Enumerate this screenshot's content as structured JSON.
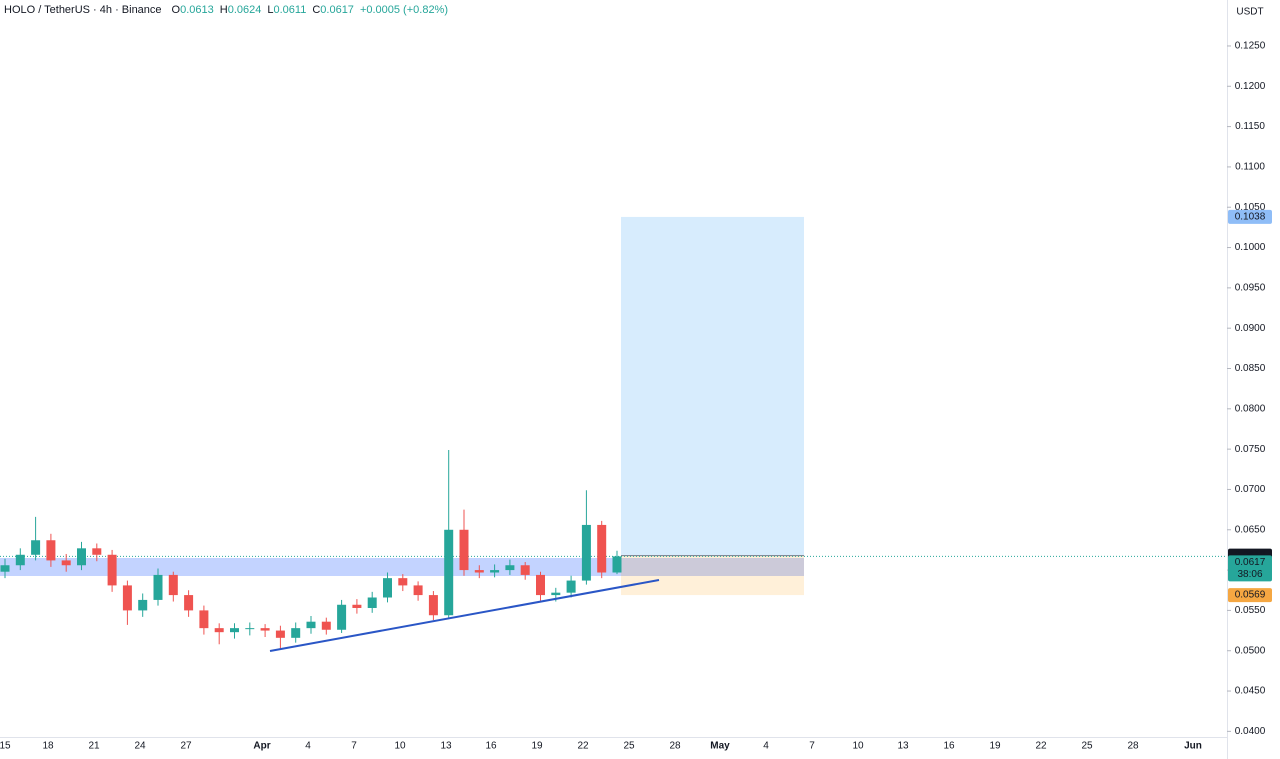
{
  "chart_data": {
    "type": "candlestick",
    "title": "HOLO / TetherUS · 4h · Binance",
    "legend_values": [
      {
        "label": "O",
        "value": 0.0613
      },
      {
        "label": "H",
        "value": 0.0624
      },
      {
        "label": "L",
        "value": 0.0611
      },
      {
        "label": "C",
        "value": 0.0617
      }
    ],
    "change": "+0.0005 (+0.82%)",
    "y_unit": "USDT",
    "xtick_labels": [
      "15",
      "18",
      "21",
      "24",
      "27",
      "Apr",
      "4",
      "7",
      "10",
      "13",
      "16",
      "19",
      "22",
      "25",
      "28",
      "May",
      "4",
      "7",
      "10",
      "13",
      "16",
      "19",
      "22",
      "25",
      "28",
      "Jun"
    ],
    "open": [
      0.0598,
      0.0606,
      0.0619,
      0.0637,
      0.0612,
      0.0606,
      0.0627,
      0.0619,
      0.0581,
      0.055,
      0.0563,
      0.0594,
      0.0569,
      0.055,
      0.0528,
      0.0523,
      0.0528,
      0.0528,
      0.0525,
      0.0516,
      0.0528,
      0.0536,
      0.0526,
      0.0557,
      0.0553,
      0.0566,
      0.059,
      0.0581,
      0.0569,
      0.0544,
      0.065,
      0.06,
      0.0597,
      0.06,
      0.0606,
      0.0594,
      0.0569,
      0.0572,
      0.0587,
      0.0656,
      0.0597
    ],
    "high": [
      0.0614,
      0.0627,
      0.0666,
      0.0645,
      0.062,
      0.0635,
      0.0633,
      0.0625,
      0.0587,
      0.0571,
      0.0602,
      0.0598,
      0.0575,
      0.0556,
      0.0534,
      0.0534,
      0.0535,
      0.0533,
      0.0531,
      0.0535,
      0.0543,
      0.0541,
      0.0563,
      0.0564,
      0.0573,
      0.0597,
      0.0595,
      0.0586,
      0.0574,
      0.0749,
      0.0675,
      0.0606,
      0.0607,
      0.0613,
      0.061,
      0.0598,
      0.0578,
      0.0593,
      0.0699,
      0.0661,
      0.0624
    ],
    "low": [
      0.059,
      0.06,
      0.0612,
      0.0604,
      0.0598,
      0.06,
      0.0611,
      0.0573,
      0.0532,
      0.0542,
      0.0556,
      0.0561,
      0.0542,
      0.052,
      0.0508,
      0.0515,
      0.0519,
      0.0517,
      0.0503,
      0.051,
      0.0521,
      0.052,
      0.0522,
      0.0546,
      0.0547,
      0.056,
      0.0574,
      0.0562,
      0.0538,
      0.054,
      0.0593,
      0.059,
      0.0591,
      0.0594,
      0.0588,
      0.0562,
      0.0561,
      0.0566,
      0.0582,
      0.059,
      0.0595
    ],
    "close": [
      0.0606,
      0.0619,
      0.0637,
      0.0612,
      0.0606,
      0.0627,
      0.0619,
      0.0581,
      0.055,
      0.0563,
      0.0594,
      0.0569,
      0.055,
      0.0528,
      0.0523,
      0.0528,
      0.0528,
      0.0525,
      0.0516,
      0.0528,
      0.0536,
      0.0526,
      0.0557,
      0.0553,
      0.0566,
      0.059,
      0.0581,
      0.0569,
      0.0544,
      0.065,
      0.06,
      0.0597,
      0.06,
      0.0606,
      0.0594,
      0.0569,
      0.0572,
      0.0587,
      0.0656,
      0.0597,
      0.0617
    ],
    "up_color": "#26a69a",
    "down_color": "#ef5350",
    "ylim": [
      0.0393,
      0.1307
    ],
    "yticks": [
      {
        "value": 0.04,
        "label": "0.0400"
      },
      {
        "value": 0.045,
        "label": "0.0450"
      },
      {
        "value": 0.05,
        "label": "0.0500"
      },
      {
        "value": 0.055,
        "label": "0.0550"
      },
      {
        "value": 0.06,
        "label": "0.0600"
      },
      {
        "value": 0.065,
        "label": "0.0650"
      },
      {
        "value": 0.07,
        "label": "0.0700"
      },
      {
        "value": 0.075,
        "label": "0.0750"
      },
      {
        "value": 0.08,
        "label": "0.0800"
      },
      {
        "value": 0.085,
        "label": "0.0850"
      },
      {
        "value": 0.09,
        "label": "0.0900"
      },
      {
        "value": 0.095,
        "label": "0.0950"
      },
      {
        "value": 0.1,
        "label": "0.1000"
      },
      {
        "value": 0.105,
        "label": "0.1050"
      },
      {
        "value": 0.11,
        "label": "0.1100"
      },
      {
        "value": 0.115,
        "label": "0.1150"
      },
      {
        "value": 0.12,
        "label": "0.1200"
      },
      {
        "value": 0.125,
        "label": "0.1250"
      }
    ],
    "position": {
      "target": 0.1038,
      "entry": 0.0618,
      "stop": 0.0569
    },
    "last_price": 0.0617,
    "countdown": "38:06"
  }
}
